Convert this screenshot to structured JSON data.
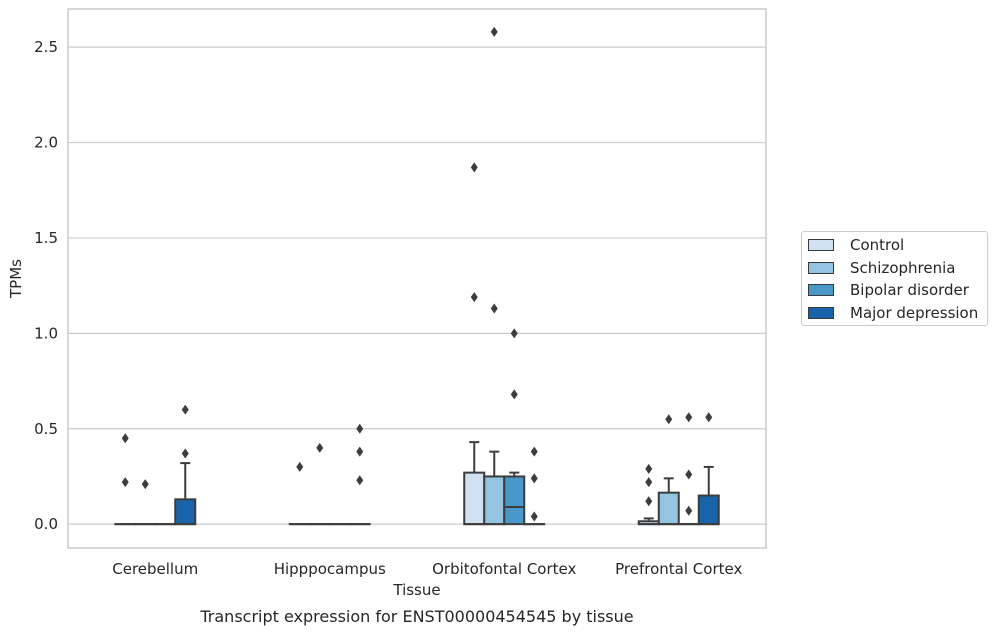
{
  "chart_data": {
    "type": "box",
    "title": "Transcript expression for ENST00000454545 by tissue",
    "xlabel": "Tissue",
    "ylabel": "TPMs",
    "ylim": [
      -0.125,
      2.7
    ],
    "yticks": [
      "0.0",
      "0.5",
      "1.0",
      "1.5",
      "2.0",
      "2.5"
    ],
    "grid": "horizontal",
    "legend_position": "right-outside",
    "categories": [
      "Cerebellum",
      "Hipppocampus",
      "Orbitofontal Cortex",
      "Prefrontal Cortex"
    ],
    "series": [
      {
        "name": "Control",
        "color": "#d0e1f2",
        "boxes": [
          {
            "category": "Cerebellum",
            "whisker_low": 0,
            "q1": 0,
            "median": 0,
            "q3": 0,
            "whisker_high": 0,
            "outliers": [
              0.45,
              0.22
            ]
          },
          {
            "category": "Hipppocampus",
            "whisker_low": 0,
            "q1": 0,
            "median": 0,
            "q3": 0,
            "whisker_high": 0,
            "outliers": [
              0.3
            ]
          },
          {
            "category": "Orbitofontal Cortex",
            "whisker_low": 0,
            "q1": 0,
            "median": 0,
            "q3": 0.27,
            "whisker_high": 0.43,
            "outliers": [
              1.19,
              1.87
            ]
          },
          {
            "category": "Prefrontal Cortex",
            "whisker_low": 0,
            "q1": 0,
            "median": 0,
            "q3": 0.015,
            "whisker_high": 0.03,
            "outliers": [
              0.29,
              0.22,
              0.12
            ]
          }
        ]
      },
      {
        "name": "Schizophrenia",
        "color": "#94c4df",
        "boxes": [
          {
            "category": "Cerebellum",
            "whisker_low": 0,
            "q1": 0,
            "median": 0,
            "q3": 0,
            "whisker_high": 0,
            "outliers": [
              0.21
            ]
          },
          {
            "category": "Hipppocampus",
            "whisker_low": 0,
            "q1": 0,
            "median": 0,
            "q3": 0,
            "whisker_high": 0,
            "outliers": [
              0.4
            ]
          },
          {
            "category": "Orbitofontal Cortex",
            "whisker_low": 0,
            "q1": 0,
            "median": 0,
            "q3": 0.25,
            "whisker_high": 0.38,
            "outliers": [
              1.13,
              2.58
            ]
          },
          {
            "category": "Prefrontal Cortex",
            "whisker_low": 0,
            "q1": 0,
            "median": 0,
            "q3": 0.165,
            "whisker_high": 0.24,
            "outliers": [
              0.55
            ]
          }
        ]
      },
      {
        "name": "Bipolar disorder",
        "color": "#4a98c9",
        "boxes": [
          {
            "category": "Cerebellum",
            "whisker_low": 0,
            "q1": 0,
            "median": 0,
            "q3": 0,
            "whisker_high": 0,
            "outliers": []
          },
          {
            "category": "Hipppocampus",
            "whisker_low": 0,
            "q1": 0,
            "median": 0,
            "q3": 0,
            "whisker_high": 0,
            "outliers": []
          },
          {
            "category": "Orbitofontal Cortex",
            "whisker_low": 0,
            "q1": 0,
            "median": 0.09,
            "q3": 0.25,
            "whisker_high": 0.27,
            "outliers": [
              0.68,
              1.0
            ]
          },
          {
            "category": "Prefrontal Cortex",
            "whisker_low": 0,
            "q1": 0,
            "median": 0,
            "q3": 0,
            "whisker_high": 0,
            "outliers": [
              0.56,
              0.26,
              0.07
            ]
          }
        ]
      },
      {
        "name": "Major depression",
        "color": "#1764ab",
        "boxes": [
          {
            "category": "Cerebellum",
            "whisker_low": 0,
            "q1": 0,
            "median": 0,
            "q3": 0.13,
            "whisker_high": 0.32,
            "outliers": [
              0.6,
              0.37
            ]
          },
          {
            "category": "Hipppocampus",
            "whisker_low": 0,
            "q1": 0,
            "median": 0,
            "q3": 0,
            "whisker_high": 0,
            "outliers": [
              0.5,
              0.38,
              0.23
            ]
          },
          {
            "category": "Orbitofontal Cortex",
            "whisker_low": 0,
            "q1": 0,
            "median": 0,
            "q3": 0,
            "whisker_high": 0,
            "outliers": [
              0.38,
              0.24,
              0.04
            ]
          },
          {
            "category": "Prefrontal Cortex",
            "whisker_low": 0,
            "q1": 0,
            "median": 0,
            "q3": 0.15,
            "whisker_high": 0.3,
            "outliers": [
              0.56
            ]
          }
        ]
      }
    ]
  }
}
